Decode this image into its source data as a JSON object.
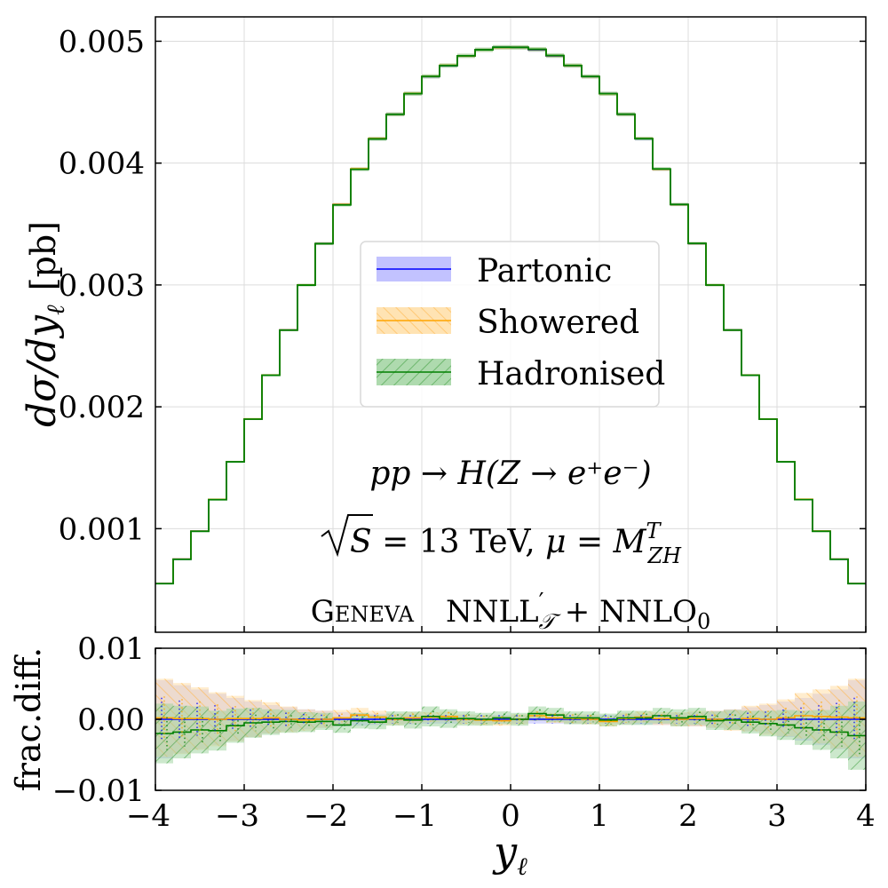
{
  "chart_data": [
    {
      "type": "line",
      "panel": "main",
      "step": true,
      "xlim": [
        -4,
        4
      ],
      "ylim": [
        0.00015,
        0.0052
      ],
      "ylabel": "dσ/dy",
      "ylabel_sub": "ℓ",
      "ylabel_unit": "[pb]",
      "xticks": [
        "−4",
        "−3",
        "−2",
        "−1",
        "0",
        "1",
        "2",
        "3",
        "4"
      ],
      "yticks": [
        {
          "v": 0.001,
          "label": "0.001"
        },
        {
          "v": 0.002,
          "label": "0.002"
        },
        {
          "v": 0.003,
          "label": "0.003"
        },
        {
          "v": 0.004,
          "label": "0.004"
        },
        {
          "v": 0.005,
          "label": "0.005"
        }
      ],
      "grid": true,
      "legend_position": "center",
      "bin_edges": [
        -4,
        -3.8,
        -3.6,
        -3.4,
        -3.2,
        -3,
        -2.8,
        -2.6,
        -2.4,
        -2.2,
        -2,
        -1.8,
        -1.6,
        -1.4,
        -1.2,
        -1,
        -0.8,
        -0.6,
        -0.4,
        -0.2,
        0,
        0.2,
        0.4,
        0.6,
        0.8,
        1,
        1.2,
        1.4,
        1.6,
        1.8,
        2,
        2.2,
        2.4,
        2.6,
        2.8,
        3,
        3.2,
        3.4,
        3.6,
        3.8,
        4
      ],
      "values": [
        0.00055,
        0.00075,
        0.00098,
        0.00124,
        0.00155,
        0.0019,
        0.00226,
        0.00263,
        0.003,
        0.00334,
        0.00366,
        0.00395,
        0.0042,
        0.0044,
        0.00457,
        0.00471,
        0.0048,
        0.00488,
        0.00493,
        0.00495,
        0.00495,
        0.00493,
        0.00488,
        0.0048,
        0.00471,
        0.00457,
        0.0044,
        0.0042,
        0.00395,
        0.00366,
        0.00334,
        0.003,
        0.00263,
        0.00226,
        0.0019,
        0.00155,
        0.00124,
        0.00098,
        0.00075,
        0.00055
      ],
      "series": [
        {
          "name": "Partonic",
          "color": "#0000ff",
          "band_color": "#b3b3ff",
          "hatch": "none"
        },
        {
          "name": "Showered",
          "color": "#ffa500",
          "band_color": "#ffdca0",
          "hatch": "back"
        },
        {
          "name": "Hadronised",
          "color": "#008000",
          "band_color": "#9ad19a",
          "hatch": "fwd"
        }
      ]
    },
    {
      "type": "line",
      "panel": "ratio",
      "step": true,
      "xlim": [
        -4,
        4
      ],
      "ylim": [
        -0.01,
        0.01
      ],
      "xlabel": "y",
      "xlabel_sub": "ℓ",
      "ylabel": "frac.diff.",
      "yticks": [
        {
          "v": -0.01,
          "label": "−0.01"
        },
        {
          "v": 0,
          "label": "0.00"
        },
        {
          "v": 0.01,
          "label": "0.01"
        }
      ],
      "grid": true,
      "bin_edges": [
        -4,
        -3.8,
        -3.6,
        -3.4,
        -3.2,
        -3,
        -2.8,
        -2.6,
        -2.4,
        -2.2,
        -2,
        -1.8,
        -1.6,
        -1.4,
        -1.2,
        -1,
        -0.8,
        -0.6,
        -0.4,
        -0.2,
        0,
        0.2,
        0.4,
        0.6,
        0.8,
        1,
        1.2,
        1.4,
        1.6,
        1.8,
        2,
        2.2,
        2.4,
        2.6,
        2.8,
        3,
        3.2,
        3.4,
        3.6,
        3.8,
        4
      ],
      "series": [
        {
          "name": "Partonic",
          "color": "#0000ff",
          "band_color": "#b3b3ff",
          "values": [
            0,
            0,
            0,
            0,
            0,
            0,
            0,
            0,
            0,
            0,
            0,
            0,
            0,
            0,
            0,
            0,
            0,
            0,
            0,
            0,
            0,
            0,
            0,
            0,
            0,
            0,
            0,
            0,
            0,
            0,
            0,
            0,
            0,
            0,
            0,
            0,
            0,
            0,
            0,
            0
          ],
          "band": [
            0.0055,
            0.0048,
            0.0042,
            0.0036,
            0.003,
            0.0025,
            0.002,
            0.0017,
            0.0014,
            0.0012,
            0.001,
            0.0009,
            0.0008,
            0.0007,
            0.0007,
            0.0006,
            0.0006,
            0.0006,
            0.0006,
            0.0006,
            0.0006,
            0.0006,
            0.0006,
            0.0006,
            0.0006,
            0.0006,
            0.0007,
            0.0007,
            0.0008,
            0.0009,
            0.001,
            0.0012,
            0.0014,
            0.0017,
            0.002,
            0.0025,
            0.003,
            0.0036,
            0.0042,
            0.0055
          ]
        },
        {
          "name": "Showered",
          "color": "#ffa500",
          "band_color": "#ffdca0",
          "values": [
            0.0002,
            0.0001,
            0.0001,
            0,
            0.0001,
            0.0001,
            0.0002,
            0,
            -0.0001,
            0,
            0.0002,
            0.0006,
            0.0003,
            0,
            0.0002,
            0.0003,
            0.0004,
            0,
            -0.0001,
            -0.0002,
            0,
            0.0005,
            0.0002,
            0.0001,
            0,
            -0.0003,
            0.0001,
            0.0003,
            0.0001,
            0,
            0.0001,
            0,
            -0.0001,
            0.0001,
            0,
            0.0002,
            0.0005,
            0.0004,
            0.0003,
            0.0002
          ],
          "band": [
            0.0055,
            0.005,
            0.0044,
            0.0038,
            0.0032,
            0.0026,
            0.0022,
            0.0018,
            0.0015,
            0.0012,
            0.0011,
            0.001,
            0.0009,
            0.0008,
            0.0008,
            0.0007,
            0.0007,
            0.0007,
            0.0007,
            0.0007,
            0.0007,
            0.0007,
            0.0007,
            0.0007,
            0.0007,
            0.0007,
            0.0008,
            0.0008,
            0.0009,
            0.001,
            0.0011,
            0.0012,
            0.0015,
            0.0018,
            0.0022,
            0.0026,
            0.0032,
            0.0038,
            0.0044,
            0.0055
          ]
        },
        {
          "name": "Hadronised",
          "color": "#008000",
          "band_color": "#9ad19a",
          "values": [
            -0.002,
            -0.0018,
            -0.0015,
            -0.0016,
            -0.0009,
            -0.0005,
            -0.0004,
            -0.0003,
            -0.0004,
            -0.0003,
            -0.0008,
            -0.0002,
            -0.0004,
            0.0001,
            -0.0001,
            0.0004,
            0.0001,
            0.0001,
            0,
            0.0002,
            0,
            0.0008,
            0.0006,
            0.0002,
            0.0002,
            -0.0001,
            0.0002,
            0.0002,
            0.0005,
            0.0002,
            0.0004,
            -0.0002,
            -0.0001,
            -0.0004,
            -0.0006,
            -0.0008,
            -0.0012,
            -0.0015,
            -0.0018,
            -0.0023
          ],
          "band": [
            0.0042,
            0.0037,
            0.0033,
            0.0028,
            0.0024,
            0.0021,
            0.0018,
            0.0016,
            0.0014,
            0.0012,
            0.0011,
            0.0011,
            0.001,
            0.001,
            0.0012,
            0.0014,
            0.0013,
            0.001,
            0.0009,
            0.0009,
            0.0009,
            0.001,
            0.001,
            0.0009,
            0.0009,
            0.0009,
            0.001,
            0.001,
            0.0011,
            0.0012,
            0.0012,
            0.0013,
            0.0014,
            0.0016,
            0.0018,
            0.0021,
            0.0024,
            0.0028,
            0.0037,
            0.0048
          ]
        }
      ]
    }
  ],
  "annotations": {
    "process_left": "pp",
    "process_arrow": " → ",
    "process_right": "H(Z → e⁺e⁻)",
    "energy_lhs": "S",
    "energy_mid": " = 13 TeV,  ",
    "mu_symbol": "μ",
    "mu_eq": " = ",
    "mu_M": "M",
    "mu_sup": "T",
    "mu_sub": "ZH",
    "generator": "Geneva",
    "accuracy_a": "NNLL",
    "accuracy_prime": "′",
    "accuracy_sub": "𝒯",
    "accuracy_b": " + NNLO",
    "accuracy_zero": "0"
  }
}
